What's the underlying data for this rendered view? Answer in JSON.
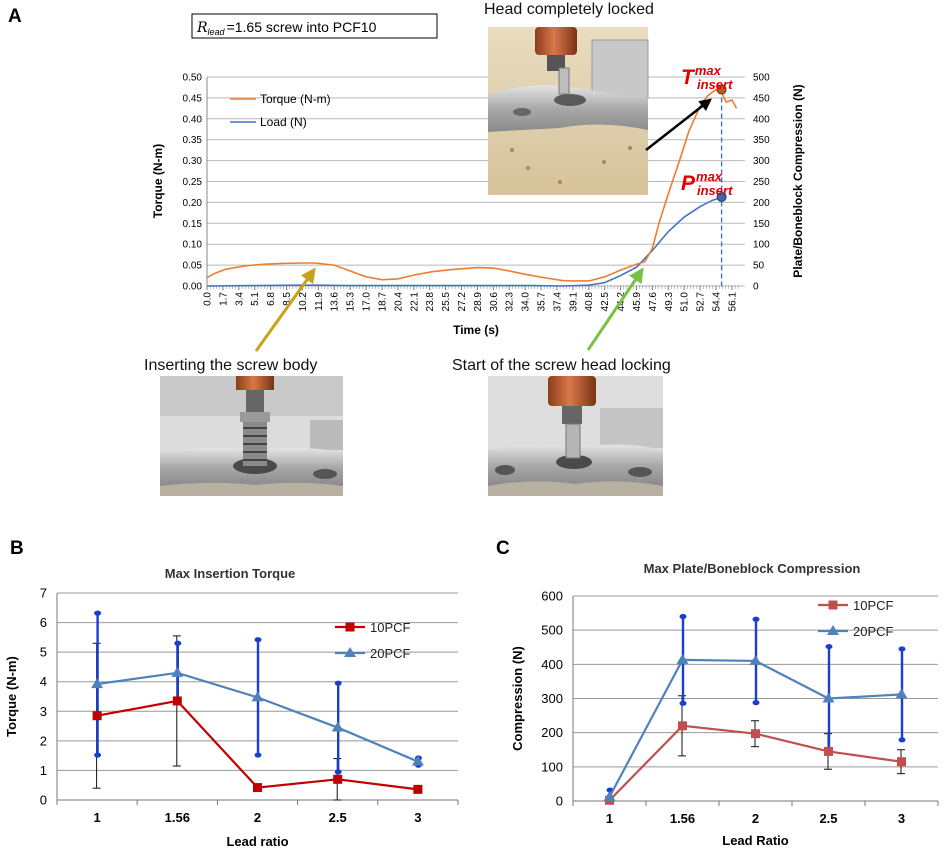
{
  "panel_labels": {
    "a": "A",
    "b": "B",
    "c": "C"
  },
  "panel_a": {
    "condition_box": {
      "symbol": "R",
      "subscript": "lead",
      "text": "=1.65 screw into PCF10"
    },
    "captions": {
      "top": "Head completely locked",
      "left": "Inserting the screw body",
      "right": "Start of the screw head locking"
    },
    "markers": {
      "torque_label": "T",
      "load_label": "P",
      "sup": "max",
      "sub": "insert"
    },
    "colors": {
      "torque": "#ed7d31",
      "load": "#4472c4",
      "arrow_yellow": "#c9a21a",
      "arrow_green": "#79c143",
      "arrow_black": "#000000",
      "marker_text": "#e00000"
    }
  },
  "chart_data": [
    {
      "id": "A",
      "type": "line",
      "title": "",
      "xlabel": "Time (s)",
      "ylabel": "Torque (N-m)",
      "y2label": "Plate/Boneblock Compression (N)",
      "xlim": [
        0,
        57.5
      ],
      "ylim": [
        0,
        0.5
      ],
      "y2lim": [
        0,
        500
      ],
      "x_ticks": [
        "0.0",
        "1.7",
        "3.4",
        "5.1",
        "6.8",
        "8.5",
        "10.2",
        "11.9",
        "13.6",
        "15.3",
        "17.0",
        "18.7",
        "20.4",
        "22.1",
        "23.8",
        "25.5",
        "27.2",
        "28.9",
        "30.6",
        "32.3",
        "34.0",
        "35.7",
        "37.4",
        "39.1",
        "40.8",
        "42.5",
        "44.2",
        "45.9",
        "47.6",
        "49.3",
        "51.0",
        "52.7",
        "54.4",
        "56.1"
      ],
      "y_ticks": [
        "0.00",
        "0.05",
        "0.10",
        "0.15",
        "0.20",
        "0.25",
        "0.30",
        "0.35",
        "0.40",
        "0.45",
        "0.50"
      ],
      "y2_ticks": [
        "0",
        "50",
        "100",
        "150",
        "200",
        "250",
        "300",
        "350",
        "400",
        "450",
        "500"
      ],
      "legend": [
        "Torque (N-m)",
        "Load (N)"
      ],
      "legend_position": "top-left",
      "series": [
        {
          "name": "Torque (N-m)",
          "axis": "left",
          "x": [
            0,
            0.8,
            2,
            4,
            6,
            8,
            10.2,
            11.5,
            13.6,
            15.3,
            17,
            18.7,
            20.4,
            22.1,
            24,
            26,
            28.9,
            30.6,
            32.3,
            34,
            36,
            38,
            39.1,
            40.8,
            42.5,
            44.2,
            45.9,
            46.8,
            47.6,
            48.3,
            49.3,
            50.5,
            51.5,
            52.7,
            53.5,
            54.4,
            55.0,
            55.5,
            56.1,
            56.6
          ],
          "values": [
            0.02,
            0.03,
            0.04,
            0.048,
            0.052,
            0.054,
            0.055,
            0.055,
            0.05,
            0.036,
            0.022,
            0.015,
            0.017,
            0.026,
            0.034,
            0.039,
            0.044,
            0.043,
            0.036,
            0.028,
            0.02,
            0.013,
            0.012,
            0.012,
            0.022,
            0.038,
            0.052,
            0.058,
            0.09,
            0.15,
            0.22,
            0.3,
            0.37,
            0.43,
            0.455,
            0.47,
            0.462,
            0.44,
            0.445,
            0.425
          ]
        },
        {
          "name": "Load (N)",
          "axis": "right",
          "x": [
            0,
            5,
            10,
            12,
            15,
            20,
            25,
            30,
            35,
            38,
            40.8,
            42.5,
            44.2,
            45.9,
            47.6,
            49.3,
            51,
            52.7,
            54,
            55,
            55.5
          ],
          "values": [
            0,
            1,
            2,
            2,
            1,
            1,
            1,
            1,
            1,
            0,
            2,
            8,
            25,
            45,
            85,
            130,
            165,
            190,
            205,
            212,
            213
          ]
        }
      ],
      "annotations": [
        {
          "text": "T max insert",
          "x": 55.0,
          "value": 0.47
        },
        {
          "text": "P max insert",
          "x": 55.0,
          "value": 213
        }
      ]
    },
    {
      "id": "B",
      "type": "line",
      "title": "Max Insertion Torque",
      "xlabel": "Lead ratio",
      "ylabel": "Torque  (N-m)",
      "categories": [
        "1",
        "1.56",
        "2",
        "2.5",
        "3"
      ],
      "ylim": [
        0,
        7
      ],
      "y_ticks": [
        "0",
        "1",
        "2",
        "3",
        "4",
        "5",
        "6",
        "7"
      ],
      "grid": true,
      "legend_position": "top-right",
      "series": [
        {
          "name": "10PCF",
          "color": "#c00000",
          "values": [
            2.85,
            3.35,
            0.42,
            0.7,
            0.36
          ],
          "error": [
            2.45,
            2.2,
            0.0,
            0.7,
            0.0
          ]
        },
        {
          "name": "20PCF",
          "color": "#4f81bd",
          "values": [
            3.92,
            4.3,
            3.47,
            2.45,
            1.3
          ],
          "error": [
            2.4,
            1.0,
            1.95,
            1.5,
            0.12
          ]
        }
      ]
    },
    {
      "id": "C",
      "type": "line",
      "title": "Max Plate/Boneblock Compression",
      "xlabel": "Lead Ratio",
      "ylabel": "Compression (N)",
      "categories": [
        "1",
        "1.56",
        "2",
        "2.5",
        "3"
      ],
      "ylim": [
        0,
        600
      ],
      "y_ticks": [
        "0",
        "100",
        "200",
        "300",
        "400",
        "500",
        "600"
      ],
      "grid": true,
      "legend_position": "top-right",
      "series": [
        {
          "name": "10PCF",
          "color": "#c0504d",
          "values": [
            2,
            220,
            197,
            145,
            115
          ],
          "error": [
            0,
            88,
            38,
            52,
            35
          ]
        },
        {
          "name": "20PCF",
          "color": "#4f81bd",
          "values": [
            12,
            413,
            410,
            300,
            312
          ],
          "error": [
            20,
            127,
            122,
            152,
            133
          ]
        }
      ]
    }
  ]
}
